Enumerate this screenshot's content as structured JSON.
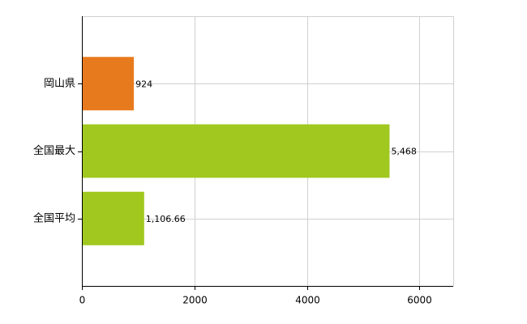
{
  "chart_data": {
    "type": "bar",
    "orientation": "horizontal",
    "categories": [
      "岡山県",
      "全国最大",
      "全国平均"
    ],
    "values": [
      924,
      5468,
      1106.66
    ],
    "value_labels": [
      "924",
      "5,468",
      "1,106.66"
    ],
    "colors": [
      "#e87a1e",
      "#a0c81e",
      "#a0c81e"
    ],
    "xlim": [
      0,
      6600
    ],
    "xticks": [
      0,
      2000,
      4000,
      6000
    ],
    "grid": true
  }
}
